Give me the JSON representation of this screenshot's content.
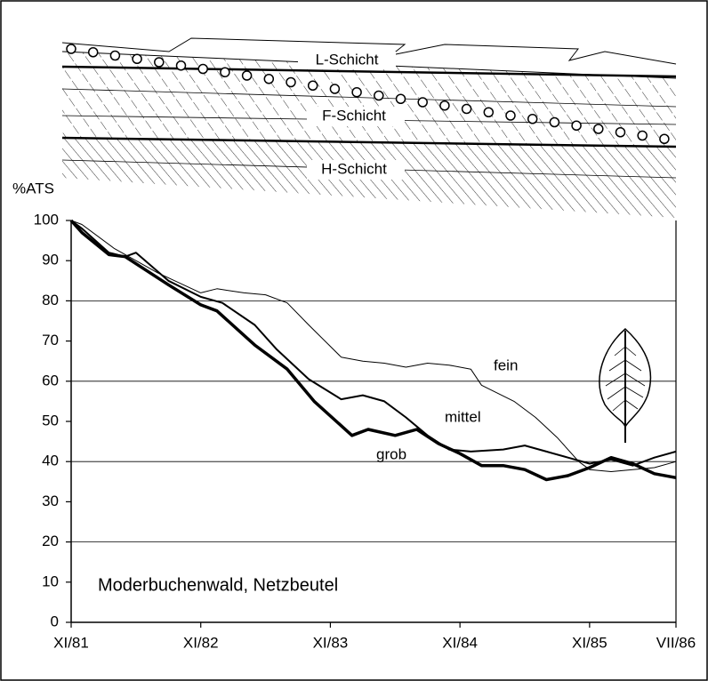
{
  "chart_data": {
    "type": "line",
    "ylabel": "%ATS",
    "annotation": "Moderbuchenwald, Netzbeutel",
    "layer_labels": [
      "L-Schicht",
      "F-Schicht",
      "H-Schicht"
    ],
    "xlim": [
      0,
      56
    ],
    "xticks": [
      {
        "value": 0,
        "label": "XI/81"
      },
      {
        "value": 12,
        "label": "XI/82"
      },
      {
        "value": 24,
        "label": "XI/83"
      },
      {
        "value": 36,
        "label": "XI/84"
      },
      {
        "value": 48,
        "label": "XI/85"
      },
      {
        "value": 56,
        "label": "VII/86"
      }
    ],
    "ylim": [
      0,
      100
    ],
    "yticks": [
      0,
      10,
      20,
      30,
      40,
      50,
      60,
      70,
      80,
      90,
      100
    ],
    "grid": true,
    "series": [
      {
        "name": "fein",
        "color": "#000000",
        "width": 1,
        "x": [
          0,
          1,
          4,
          6,
          8,
          12,
          13.5,
          16,
          18,
          20,
          22,
          25,
          27,
          29,
          31,
          33,
          35,
          37,
          38,
          41,
          43,
          45,
          47,
          48,
          50,
          52,
          54,
          56
        ],
        "values": [
          100,
          99,
          93,
          90,
          87,
          82,
          83,
          82,
          81.5,
          79.5,
          74,
          66,
          65,
          64.5,
          63.5,
          64.5,
          64,
          63,
          59,
          55,
          51,
          46,
          40,
          38,
          37.5,
          38,
          38.5,
          40
        ]
      },
      {
        "name": "mittel",
        "color": "#000000",
        "width": 2,
        "x": [
          0,
          1,
          3.5,
          5,
          6,
          9,
          12,
          14,
          17,
          19,
          22,
          25,
          27,
          29,
          31,
          33,
          35,
          37,
          40,
          42,
          44,
          46,
          48,
          50,
          52,
          54,
          56
        ],
        "values": [
          100,
          98,
          92,
          91,
          92,
          85,
          81,
          79.5,
          74,
          68,
          60.5,
          55.5,
          56.5,
          55,
          51,
          46.5,
          43,
          42.5,
          43,
          44,
          42.5,
          41,
          39.5,
          40.5,
          39,
          41,
          42.5
        ]
      },
      {
        "name": "grob",
        "color": "#000000",
        "width": 3.5,
        "x": [
          0,
          1,
          3.5,
          5,
          9,
          12,
          13.5,
          17,
          20,
          22.5,
          26,
          27.5,
          30,
          32,
          34,
          36,
          38,
          40,
          42,
          44,
          46,
          48,
          50,
          52,
          54,
          56
        ],
        "values": [
          100,
          97,
          91.5,
          91,
          84,
          79,
          77.5,
          69,
          63,
          55,
          46.5,
          48,
          46.5,
          48,
          44.5,
          42,
          39,
          39,
          38,
          35.5,
          36.5,
          38.5,
          41,
          39.5,
          37,
          36
        ]
      }
    ]
  }
}
